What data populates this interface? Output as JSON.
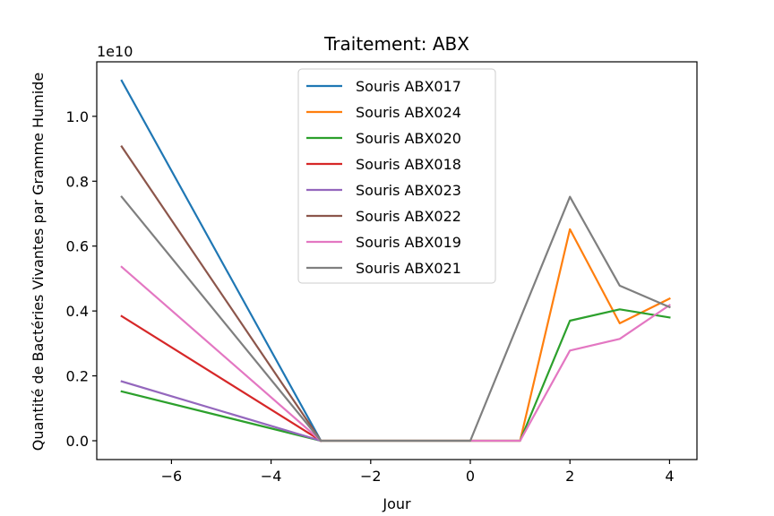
{
  "chart_data": {
    "type": "line",
    "title": "Traitement: ABX",
    "xlabel": "Jour",
    "ylabel": "Quantité de Bactéries Vivantes par Gramme Humide",
    "y_offset_label": "1e10",
    "xlim": [
      -7.5,
      4.55
    ],
    "ylim": [
      -0.058,
      1.168
    ],
    "x_ticks": [
      -6,
      -4,
      -2,
      0,
      2,
      4
    ],
    "x_tick_labels": [
      "−6",
      "−4",
      "−2",
      "0",
      "2",
      "4"
    ],
    "y_ticks": [
      0.0,
      0.2,
      0.4,
      0.6,
      0.8,
      1.0
    ],
    "y_tick_labels": [
      "0.0",
      "0.2",
      "0.4",
      "0.6",
      "0.8",
      "1.0"
    ],
    "legend_position": "top-center",
    "series": [
      {
        "name": "Souris ABX017",
        "color": "#1f77b4",
        "x": [
          -7,
          -3
        ],
        "y": [
          1.11,
          0.0
        ]
      },
      {
        "name": "Souris ABX024",
        "color": "#ff7f0e",
        "x": [
          -3,
          1,
          2,
          3,
          4
        ],
        "y": [
          0.0,
          0.0,
          0.652,
          0.362,
          0.438
        ]
      },
      {
        "name": "Souris ABX020",
        "color": "#2ca02c",
        "x": [
          -7,
          -3,
          1,
          2,
          3,
          4
        ],
        "y": [
          0.152,
          0.0,
          0.0,
          0.37,
          0.405,
          0.38
        ]
      },
      {
        "name": "Souris ABX018",
        "color": "#d62728",
        "x": [
          -7,
          -3
        ],
        "y": [
          0.384,
          0.0
        ]
      },
      {
        "name": "Souris ABX023",
        "color": "#9467bd",
        "x": [
          -7,
          -3
        ],
        "y": [
          0.183,
          0.0
        ]
      },
      {
        "name": "Souris ABX022",
        "color": "#8c564b",
        "x": [
          -7,
          -3
        ],
        "y": [
          0.907,
          0.0
        ]
      },
      {
        "name": "Souris ABX019",
        "color": "#e377c2",
        "x": [
          -7,
          -3,
          1,
          2,
          3,
          4
        ],
        "y": [
          0.536,
          0.0,
          0.0,
          0.278,
          0.314,
          0.418
        ]
      },
      {
        "name": "Souris ABX021",
        "color": "#7f7f7f",
        "x": [
          -7,
          -3,
          0,
          2,
          3,
          4
        ],
        "y": [
          0.752,
          0.0,
          0.0,
          0.752,
          0.478,
          0.412
        ]
      }
    ]
  }
}
